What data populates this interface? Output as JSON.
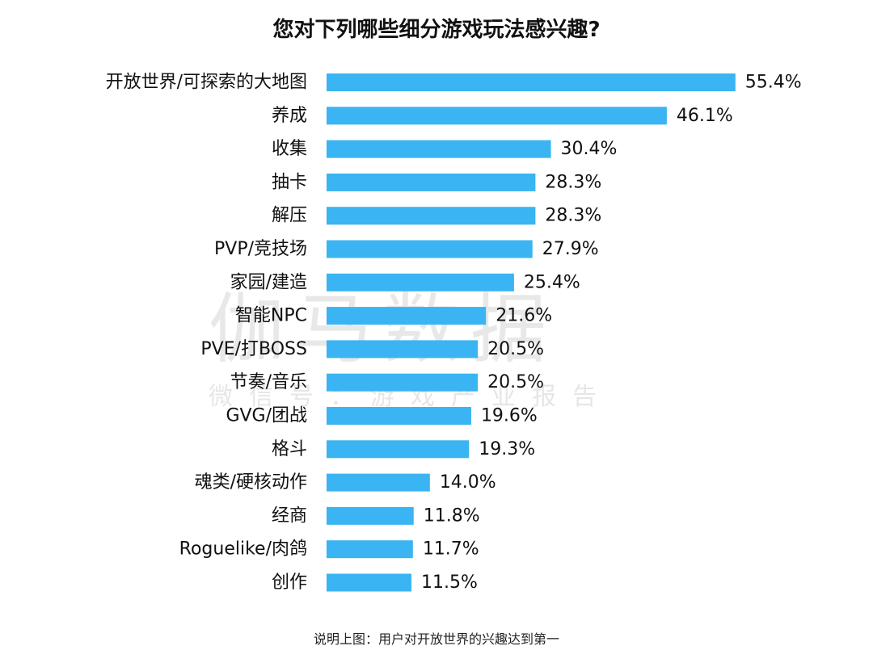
{
  "chart_data": {
    "type": "bar",
    "orientation": "horizontal",
    "title": "您对下列哪些细分游戏玩法感兴趣?",
    "categories": [
      "开放世界/可探索的大地图",
      "养成",
      "收集",
      "抽卡",
      "解压",
      "PVP/竞技场",
      "家园/建造",
      "智能NPC",
      "PVE/打BOSS",
      "节奏/音乐",
      "GVG/团战",
      "格斗",
      "魂类/硬核动作",
      "经商",
      "Roguelike/肉鸽",
      "创作"
    ],
    "values": [
      55.4,
      46.1,
      30.4,
      28.3,
      28.3,
      27.9,
      25.4,
      21.6,
      20.5,
      20.5,
      19.6,
      19.3,
      14.0,
      11.8,
      11.7,
      11.5
    ],
    "value_labels": [
      "55.4%",
      "46.1%",
      "30.4%",
      "28.3%",
      "28.3%",
      "27.9%",
      "25.4%",
      "21.6%",
      "20.5%",
      "20.5%",
      "19.6%",
      "19.3%",
      "14.0%",
      "11.8%",
      "11.7%",
      "11.5%"
    ],
    "unit": "%",
    "xlabel": "",
    "ylabel": "",
    "grid": false,
    "bar_color": "#3AB4F2"
  },
  "watermark": {
    "main": "伽马数据",
    "sub": "微信号：游戏产业报告"
  },
  "caption": "说明上图：用户对开放世界的兴趣达到第一"
}
